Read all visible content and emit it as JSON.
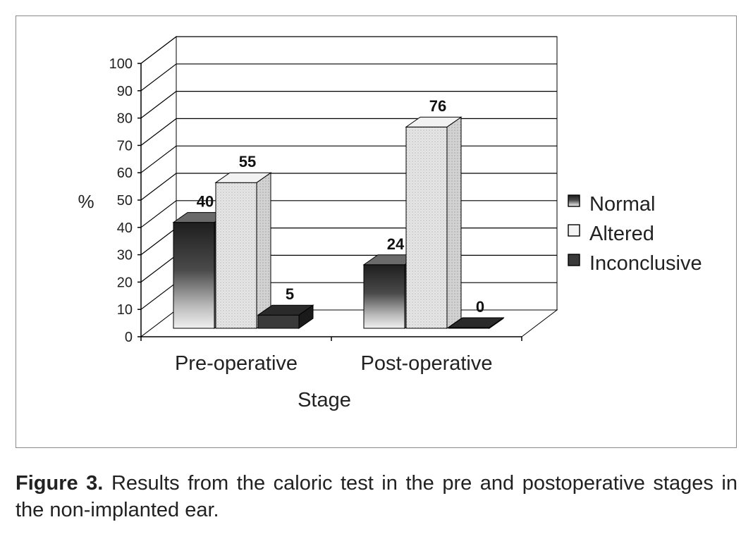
{
  "chart_data": {
    "type": "bar",
    "categories": [
      "Pre-operative",
      "Post-operative"
    ],
    "series": [
      {
        "name": "Normal",
        "values": [
          40,
          24
        ]
      },
      {
        "name": "Altered",
        "values": [
          55,
          76
        ]
      },
      {
        "name": "Inconclusive",
        "values": [
          5,
          0
        ]
      }
    ],
    "data_labels": [
      [
        "40",
        "24"
      ],
      [
        "55",
        "76"
      ],
      [
        "5",
        "0"
      ]
    ],
    "xlabel": "Stage",
    "ylabel": "%",
    "ylim": [
      0,
      100
    ],
    "yticks": [
      "0",
      "10",
      "20",
      "30",
      "40",
      "50",
      "60",
      "70",
      "80",
      "90",
      "100"
    ],
    "grid": true,
    "legend_position": "right",
    "three_d": true
  },
  "caption": {
    "label": "Figure 3.",
    "text": " Results from the caloric test in the pre and postoperative stages in the non-implanted ear."
  }
}
